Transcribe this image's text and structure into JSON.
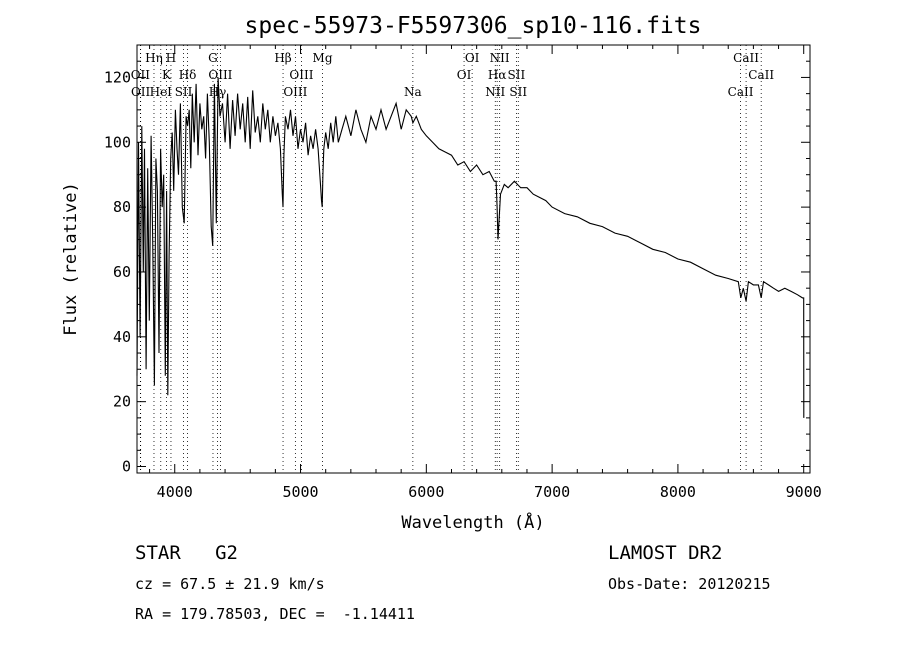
{
  "chart_data": {
    "type": "line",
    "title": "spec-55973-F5597306_sp10-116.fits",
    "xlabel": "Wavelength (Å)",
    "ylabel": "Flux (relative)",
    "xlim": [
      3700,
      9050
    ],
    "ylim": [
      -2,
      130
    ],
    "xticks": [
      4000,
      5000,
      6000,
      7000,
      8000,
      9000
    ],
    "yticks": [
      0,
      20,
      40,
      60,
      80,
      100,
      120
    ],
    "grid": false,
    "series": [
      {
        "x": [
          3700,
          3712,
          3725,
          3738,
          3750,
          3760,
          3772,
          3785,
          3798,
          3812,
          3825,
          3838,
          3850,
          3862,
          3875,
          3888,
          3900,
          3912,
          3925,
          3935,
          3945,
          3955,
          3968,
          3980,
          3992,
          4005,
          4018,
          4030,
          4045,
          4060,
          4075,
          4090,
          4102,
          4115,
          4128,
          4140,
          4155,
          4170,
          4185,
          4200,
          4215,
          4230,
          4245,
          4260,
          4275,
          4290,
          4302,
          4315,
          4330,
          4345,
          4360,
          4380,
          4400,
          4420,
          4440,
          4460,
          4480,
          4500,
          4520,
          4540,
          4560,
          4580,
          4600,
          4620,
          4640,
          4660,
          4680,
          4700,
          4720,
          4740,
          4760,
          4780,
          4800,
          4820,
          4840,
          4855,
          4861,
          4868,
          4880,
          4900,
          4920,
          4940,
          4960,
          4980,
          5000,
          5020,
          5040,
          5060,
          5080,
          5100,
          5120,
          5140,
          5160,
          5167,
          5172,
          5178,
          5185,
          5200,
          5220,
          5240,
          5260,
          5280,
          5300,
          5330,
          5360,
          5400,
          5440,
          5480,
          5520,
          5560,
          5600,
          5640,
          5680,
          5720,
          5760,
          5800,
          5840,
          5880,
          5893,
          5920,
          5960,
          6000,
          6050,
          6100,
          6150,
          6200,
          6250,
          6300,
          6350,
          6400,
          6450,
          6500,
          6540,
          6555,
          6563,
          6570,
          6590,
          6620,
          6650,
          6700,
          6750,
          6800,
          6850,
          6900,
          6950,
          7000,
          7100,
          7200,
          7300,
          7400,
          7500,
          7600,
          7700,
          7800,
          7900,
          8000,
          8100,
          8200,
          8300,
          8400,
          8480,
          8500,
          8520,
          8542,
          8560,
          8600,
          8640,
          8662,
          8680,
          8720,
          8760,
          8800,
          8850,
          8900,
          8950,
          8990,
          9000,
          9001
        ],
        "y": [
          28,
          100,
          40,
          105,
          60,
          98,
          30,
          92,
          45,
          102,
          70,
          25,
          95,
          85,
          35,
          98,
          80,
          90,
          28,
          85,
          22,
          65,
          95,
          103,
          85,
          110,
          98,
          90,
          112,
          80,
          75,
          108,
          105,
          110,
          92,
          115,
          100,
          118,
          96,
          112,
          104,
          108,
          95,
          115,
          100,
          74,
          68,
          118,
          75,
          120,
          108,
          112,
          100,
          115,
          98,
          113,
          102,
          115,
          104,
          112,
          100,
          114,
          98,
          116,
          103,
          108,
          100,
          112,
          104,
          110,
          100,
          108,
          102,
          106,
          98,
          84,
          80,
          96,
          108,
          104,
          110,
          102,
          108,
          98,
          104,
          100,
          106,
          96,
          102,
          98,
          104,
          98,
          86,
          82,
          80,
          90,
          98,
          103,
          98,
          106,
          100,
          108,
          100,
          104,
          108,
          102,
          110,
          104,
          100,
          108,
          104,
          110,
          104,
          108,
          112,
          104,
          110,
          108,
          106,
          108,
          104,
          102,
          100,
          98,
          97,
          96,
          93,
          94,
          91,
          93,
          90,
          91,
          88,
          88,
          80,
          70,
          84,
          87,
          86,
          88,
          86,
          86,
          84,
          83,
          82,
          80,
          78,
          77,
          75,
          74,
          72,
          71,
          69,
          67,
          66,
          64,
          63,
          61,
          59,
          58,
          57,
          52,
          55,
          51,
          57,
          56,
          56,
          52,
          57,
          56,
          55,
          54,
          55,
          54,
          53,
          52,
          52,
          15
        ]
      }
    ],
    "lines": [
      {
        "x": 3727,
        "label": "OII",
        "row": 2
      },
      {
        "x": 3729,
        "label": "OII",
        "row": 3
      },
      {
        "x": 3835,
        "label": "Hη",
        "row": 1
      },
      {
        "x": 3889,
        "label": "HeI",
        "row": 3
      },
      {
        "x": 3934,
        "label": "K",
        "row": 2
      },
      {
        "x": 3970,
        "label": "H",
        "row": 1
      },
      {
        "x": 4070,
        "label": "SII",
        "row": 3
      },
      {
        "x": 4102,
        "label": "Hδ",
        "row": 2
      },
      {
        "x": 4304,
        "label": "G",
        "row": 1
      },
      {
        "x": 4340,
        "label": "Hγ",
        "row": 3
      },
      {
        "x": 4363,
        "label": "OIII",
        "row": 2
      },
      {
        "x": 4861,
        "label": "Hβ",
        "row": 1
      },
      {
        "x": 4959,
        "label": "OIII",
        "row": 3
      },
      {
        "x": 5007,
        "label": "OIII",
        "row": 2
      },
      {
        "x": 5175,
        "label": "Mg",
        "row": 1
      },
      {
        "x": 5893,
        "label": "Na",
        "row": 3
      },
      {
        "x": 6300,
        "label": "OI",
        "row": 2
      },
      {
        "x": 6364,
        "label": "OI",
        "row": 1
      },
      {
        "x": 6548,
        "label": "NII",
        "row": 3
      },
      {
        "x": 6563,
        "label": "Hα",
        "row": 2
      },
      {
        "x": 6583,
        "label": "NII",
        "row": 1
      },
      {
        "x": 6716,
        "label": "SII",
        "row": 2
      },
      {
        "x": 6731,
        "label": "SII",
        "row": 3
      },
      {
        "x": 8498,
        "label": "CaII",
        "row": 3
      },
      {
        "x": 8542,
        "label": "CaII",
        "row": 1
      },
      {
        "x": 8662,
        "label": "CaII",
        "row": 2
      }
    ]
  },
  "info": {
    "classification": "STAR   G2",
    "survey": "LAMOST DR2",
    "cz": "cz = 67.5 ± 21.9 km/s",
    "obs_date": "Obs-Date: 20120215",
    "coords": "RA = 179.78503, DEC =  -1.14411"
  }
}
